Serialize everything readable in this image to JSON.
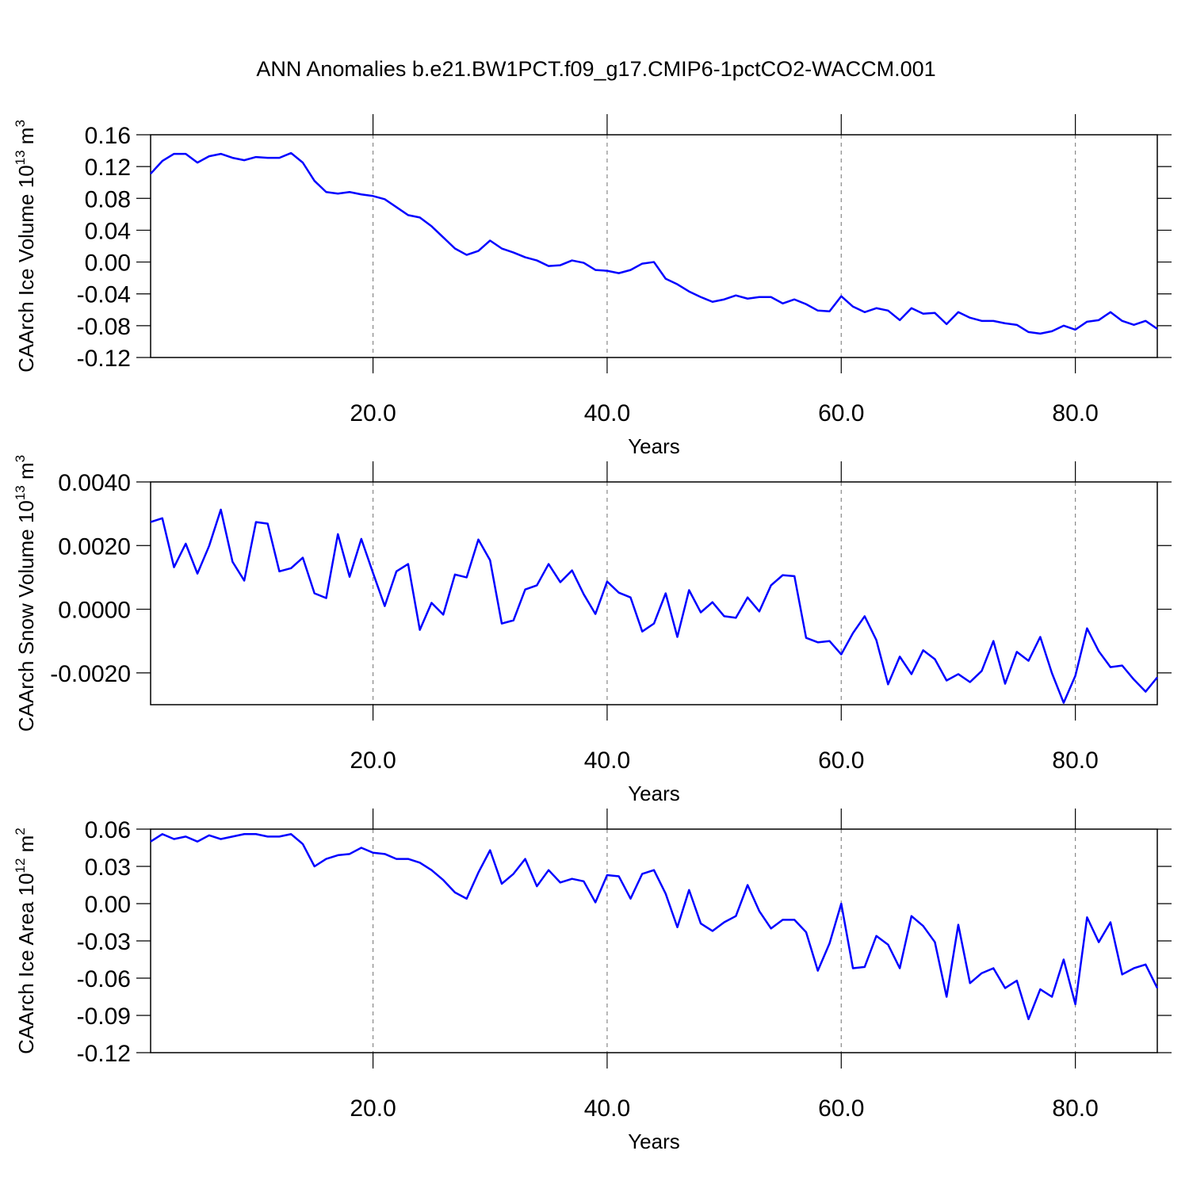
{
  "title": "ANN Anomalies b.e21.BW1PCT.f09_g17.CMIP6-1pctCO2-WACCM.001",
  "chart_data": [
    {
      "type": "line",
      "xlabel": "Years",
      "ylabel": [
        "CAArch Ice Volume 10",
        "13",
        " m",
        "3"
      ],
      "x": [
        1,
        2,
        3,
        4,
        5,
        6,
        7,
        8,
        9,
        10,
        11,
        12,
        13,
        14,
        15,
        16,
        17,
        18,
        19,
        20,
        21,
        22,
        23,
        24,
        25,
        26,
        27,
        28,
        29,
        30,
        31,
        32,
        33,
        34,
        35,
        36,
        37,
        38,
        39,
        40,
        41,
        42,
        43,
        44,
        45,
        46,
        47,
        48,
        49,
        50,
        51,
        52,
        53,
        54,
        55,
        56,
        57,
        58,
        59,
        60,
        61,
        62,
        63,
        64,
        65,
        66,
        67,
        68,
        69,
        70,
        71,
        72,
        73,
        74,
        75,
        76,
        77,
        78,
        79,
        80,
        81,
        82,
        83,
        84,
        85,
        86,
        87
      ],
      "xlim": [
        1,
        87
      ],
      "xticks": [
        {
          "value": 20,
          "label": "20.0"
        },
        {
          "value": 40,
          "label": "40.0"
        },
        {
          "value": 60,
          "label": "60.0"
        },
        {
          "value": 80,
          "label": "80.0"
        }
      ],
      "ylim": [
        -0.12,
        0.16
      ],
      "yticks": [
        0.16,
        0.12,
        0.08,
        0.04,
        {
          "value": 0,
          "label": "0.00"
        },
        -0.04,
        -0.08,
        -0.12
      ],
      "grid": true,
      "series": [
        {
          "color": "#0000ff",
          "values": [
            0.111,
            0.127,
            0.136,
            0.136,
            0.125,
            0.133,
            0.136,
            0.131,
            0.128,
            0.132,
            0.131,
            0.131,
            0.137,
            0.125,
            0.102,
            0.088,
            0.086,
            0.088,
            0.085,
            0.083,
            0.079,
            0.069,
            0.059,
            0.056,
            0.045,
            0.031,
            0.017,
            0.009,
            0.014,
            0.027,
            0.017,
            0.012,
            0.006,
            0.002,
            -0.005,
            -0.004,
            0.002,
            -0.001,
            -0.01,
            -0.011,
            -0.014,
            -0.01,
            -0.002,
            0.0,
            -0.021,
            -0.028,
            -0.037,
            -0.044,
            -0.05,
            -0.047,
            -0.042,
            -0.046,
            -0.044,
            -0.044,
            -0.052,
            -0.047,
            -0.053,
            -0.061,
            -0.062,
            -0.043,
            -0.056,
            -0.063,
            -0.058,
            -0.061,
            -0.073,
            -0.058,
            -0.065,
            -0.064,
            -0.078,
            -0.063,
            -0.07,
            -0.074,
            -0.074,
            -0.077,
            -0.079,
            -0.088,
            -0.09,
            -0.087,
            -0.08,
            -0.085,
            -0.075,
            -0.073,
            -0.063,
            -0.074,
            -0.079,
            -0.074,
            -0.084
          ]
        }
      ]
    },
    {
      "type": "line",
      "xlabel": "Years",
      "ylabel": [
        "CAArch Snow Volume 10",
        "13",
        " m",
        "3"
      ],
      "x": [
        1,
        2,
        3,
        4,
        5,
        6,
        7,
        8,
        9,
        10,
        11,
        12,
        13,
        14,
        15,
        16,
        17,
        18,
        19,
        20,
        21,
        22,
        23,
        24,
        25,
        26,
        27,
        28,
        29,
        30,
        31,
        32,
        33,
        34,
        35,
        36,
        37,
        38,
        39,
        40,
        41,
        42,
        43,
        44,
        45,
        46,
        47,
        48,
        49,
        50,
        51,
        52,
        53,
        54,
        55,
        56,
        57,
        58,
        59,
        60,
        61,
        62,
        63,
        64,
        65,
        66,
        67,
        68,
        69,
        70,
        71,
        72,
        73,
        74,
        75,
        76,
        77,
        78,
        79,
        80,
        81,
        82,
        83,
        84,
        85,
        86,
        87
      ],
      "xlim": [
        1,
        87
      ],
      "xticks": [
        {
          "value": 20,
          "label": "20.0"
        },
        {
          "value": 40,
          "label": "40.0"
        },
        {
          "value": 60,
          "label": "60.0"
        },
        {
          "value": 80,
          "label": "80.0"
        }
      ],
      "ylim": [
        -0.003,
        0.004
      ],
      "yticks": [
        {
          "value": 0.004,
          "label": "0.0040"
        },
        {
          "value": 0.002,
          "label": "0.0020"
        },
        {
          "value": 0,
          "label": "0.0000"
        },
        {
          "value": -0.002,
          "label": "-0.0020"
        }
      ],
      "grid": true,
      "series": [
        {
          "color": "#0000ff",
          "values": [
            0.00274,
            0.00286,
            0.00132,
            0.00206,
            0.00112,
            0.00199,
            0.00313,
            0.00149,
            0.0009,
            0.00274,
            0.00269,
            0.00119,
            0.00129,
            0.00162,
            0.0005,
            0.00035,
            0.00236,
            0.00102,
            0.00221,
            0.00114,
            0.0001,
            0.00119,
            0.00142,
            -0.00065,
            0.0002,
            -0.00017,
            0.00109,
            0.001,
            0.00219,
            0.00154,
            -0.00045,
            -0.00035,
            0.00062,
            0.00075,
            0.00142,
            0.00085,
            0.00122,
            0.00047,
            -0.00015,
            0.00087,
            0.00052,
            0.00037,
            -0.0007,
            -0.00045,
            0.0005,
            -0.00087,
            0.0006,
            -0.0001,
            0.00022,
            -0.00022,
            -0.00027,
            0.00037,
            -7e-05,
            0.00075,
            0.00107,
            0.00104,
            -0.0009,
            -0.00104,
            -0.001,
            -0.00142,
            -0.00075,
            -0.00022,
            -0.00097,
            -0.00236,
            -0.00149,
            -0.00204,
            -0.00129,
            -0.00157,
            -0.00224,
            -0.00204,
            -0.00229,
            -0.00194,
            -0.001,
            -0.00234,
            -0.00134,
            -0.00162,
            -0.00087,
            -0.00201,
            -0.00294,
            -0.00209,
            -0.0006,
            -0.00132,
            -0.00182,
            -0.00177,
            -0.00221,
            -0.00259,
            -0.00214
          ]
        }
      ]
    },
    {
      "type": "line",
      "xlabel": "Years",
      "ylabel": [
        "CAArch Ice Area 10",
        "12",
        " m",
        "2"
      ],
      "x": [
        1,
        2,
        3,
        4,
        5,
        6,
        7,
        8,
        9,
        10,
        11,
        12,
        13,
        14,
        15,
        16,
        17,
        18,
        19,
        20,
        21,
        22,
        23,
        24,
        25,
        26,
        27,
        28,
        29,
        30,
        31,
        32,
        33,
        34,
        35,
        36,
        37,
        38,
        39,
        40,
        41,
        42,
        43,
        44,
        45,
        46,
        47,
        48,
        49,
        50,
        51,
        52,
        53,
        54,
        55,
        56,
        57,
        58,
        59,
        60,
        61,
        62,
        63,
        64,
        65,
        66,
        67,
        68,
        69,
        70,
        71,
        72,
        73,
        74,
        75,
        76,
        77,
        78,
        79,
        80,
        81,
        82,
        83,
        84,
        85,
        86,
        87
      ],
      "xlim": [
        1,
        87
      ],
      "xticks": [
        {
          "value": 20,
          "label": "20.0"
        },
        {
          "value": 40,
          "label": "40.0"
        },
        {
          "value": 60,
          "label": "60.0"
        },
        {
          "value": 80,
          "label": "80.0"
        }
      ],
      "ylim": [
        -0.12,
        0.06
      ],
      "yticks": [
        0.06,
        0.03,
        {
          "value": 0,
          "label": "0.00"
        },
        -0.03,
        -0.06,
        -0.09,
        -0.12
      ],
      "grid": true,
      "series": [
        {
          "color": "#0000ff",
          "values": [
            0.05,
            0.056,
            0.052,
            0.054,
            0.05,
            0.055,
            0.052,
            0.054,
            0.056,
            0.056,
            0.054,
            0.054,
            0.056,
            0.048,
            0.03,
            0.036,
            0.039,
            0.04,
            0.045,
            0.041,
            0.04,
            0.036,
            0.036,
            0.033,
            0.027,
            0.019,
            0.009,
            0.004,
            0.025,
            0.043,
            0.016,
            0.024,
            0.036,
            0.014,
            0.027,
            0.017,
            0.02,
            0.018,
            0.001,
            0.023,
            0.022,
            0.004,
            0.024,
            0.027,
            0.008,
            -0.019,
            0.011,
            -0.016,
            -0.022,
            -0.015,
            -0.01,
            0.015,
            -0.006,
            -0.02,
            -0.013,
            -0.013,
            -0.023,
            -0.054,
            -0.032,
            0.0,
            -0.052,
            -0.051,
            -0.026,
            -0.033,
            -0.052,
            -0.01,
            -0.018,
            -0.031,
            -0.075,
            -0.017,
            -0.064,
            -0.056,
            -0.052,
            -0.068,
            -0.062,
            -0.093,
            -0.069,
            -0.075,
            -0.045,
            -0.081,
            -0.011,
            -0.031,
            -0.015,
            -0.057,
            -0.052,
            -0.049,
            -0.068
          ]
        }
      ]
    }
  ]
}
